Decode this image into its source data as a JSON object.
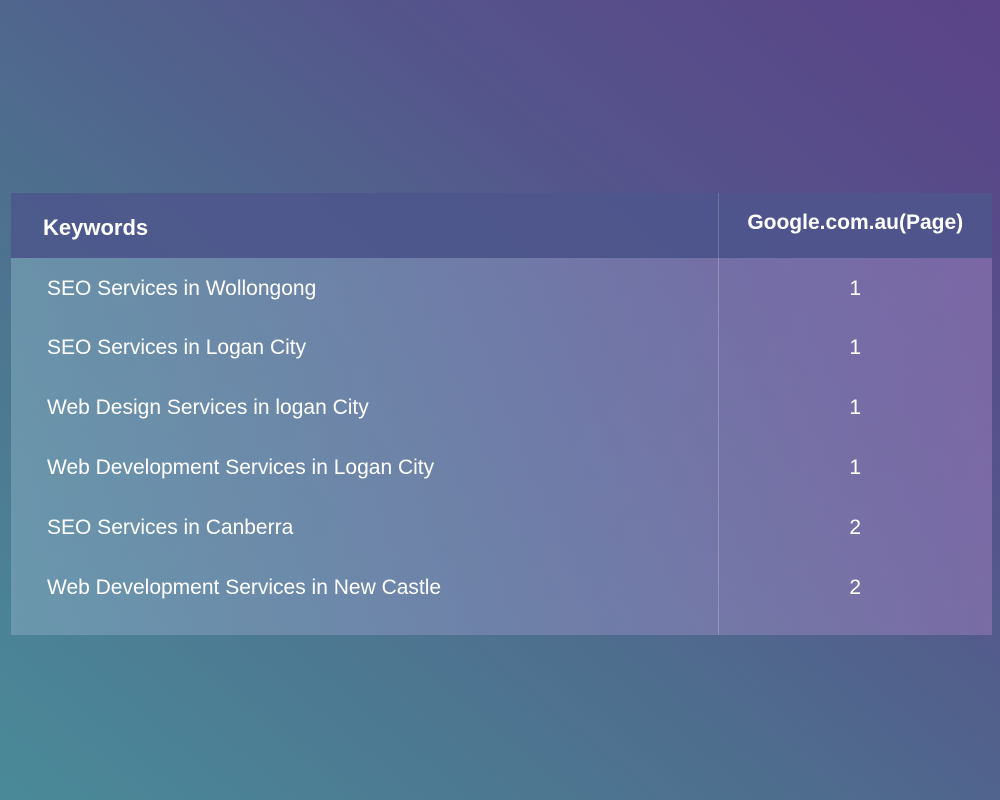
{
  "table": {
    "headers": {
      "keyword": "Keywords",
      "page": "Google.com.au(Page)"
    },
    "rows": [
      {
        "keyword": "SEO Services in Wollongong",
        "page": "1"
      },
      {
        "keyword": "SEO Services in Logan City",
        "page": "1"
      },
      {
        "keyword": "Web Design Services in logan City",
        "page": "1"
      },
      {
        "keyword": "Web Development Services in Logan City",
        "page": "1"
      },
      {
        "keyword": "SEO Services in Canberra",
        "page": "2"
      },
      {
        "keyword": "Web Development Services in New Castle",
        "page": "2"
      }
    ]
  }
}
